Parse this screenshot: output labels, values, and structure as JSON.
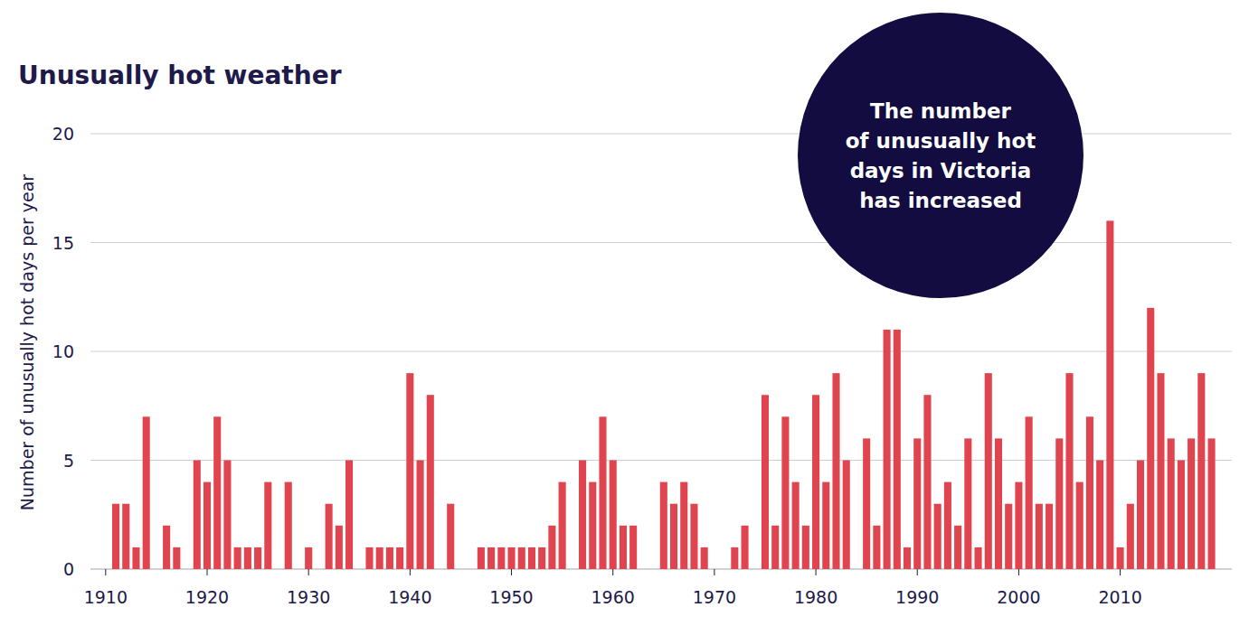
{
  "chart_data": {
    "type": "bar",
    "title": "Unusually hot weather",
    "y_label": "Number of unusually hot days per year",
    "annotation": [
      "The number",
      "of unusually hot",
      "days in Victoria",
      "has increased"
    ],
    "x": [
      1911,
      1912,
      1913,
      1914,
      1915,
      1916,
      1917,
      1918,
      1919,
      1920,
      1921,
      1922,
      1923,
      1924,
      1925,
      1926,
      1927,
      1928,
      1929,
      1930,
      1931,
      1932,
      1933,
      1934,
      1935,
      1936,
      1937,
      1938,
      1939,
      1940,
      1941,
      1942,
      1943,
      1944,
      1945,
      1946,
      1947,
      1948,
      1949,
      1950,
      1951,
      1952,
      1953,
      1954,
      1955,
      1956,
      1957,
      1958,
      1959,
      1960,
      1961,
      1962,
      1963,
      1964,
      1965,
      1966,
      1967,
      1968,
      1969,
      1970,
      1971,
      1972,
      1973,
      1974,
      1975,
      1976,
      1977,
      1978,
      1979,
      1980,
      1981,
      1982,
      1983,
      1984,
      1985,
      1986,
      1987,
      1988,
      1989,
      1990,
      1991,
      1992,
      1993,
      1994,
      1995,
      1996,
      1997,
      1998,
      1999,
      2000,
      2001,
      2002,
      2003,
      2004,
      2005,
      2006,
      2007,
      2008,
      2009,
      2010,
      2011,
      2012,
      2013,
      2014,
      2015,
      2016,
      2017,
      2018,
      2019
    ],
    "values": [
      3,
      3,
      1,
      7,
      0,
      2,
      1,
      0,
      5,
      4,
      7,
      5,
      1,
      1,
      1,
      4,
      0,
      4,
      0,
      1,
      0,
      3,
      2,
      5,
      0,
      1,
      1,
      1,
      1,
      9,
      5,
      8,
      0,
      3,
      0,
      0,
      1,
      1,
      1,
      1,
      1,
      1,
      1,
      2,
      4,
      0,
      5,
      4,
      7,
      5,
      2,
      2,
      0,
      0,
      4,
      3,
      4,
      3,
      1,
      0,
      0,
      1,
      2,
      0,
      8,
      2,
      7,
      4,
      2,
      8,
      4,
      9,
      5,
      0,
      6,
      2,
      11,
      11,
      1,
      6,
      8,
      3,
      4,
      2,
      6,
      1,
      9,
      6,
      3,
      4,
      7,
      3,
      3,
      6,
      9,
      4,
      7,
      5,
      16,
      1,
      3,
      5,
      12,
      9,
      6,
      5,
      6,
      9,
      6
    ],
    "color": "#e0454f",
    "xlim": [
      1908.5,
      2021
    ],
    "xticks": [
      1910,
      1920,
      1930,
      1940,
      1950,
      1960,
      1970,
      1980,
      1990,
      2000,
      2010
    ],
    "ylim": [
      0,
      20
    ],
    "yticks": [
      0,
      5,
      10,
      15,
      20
    ],
    "grid": true
  }
}
